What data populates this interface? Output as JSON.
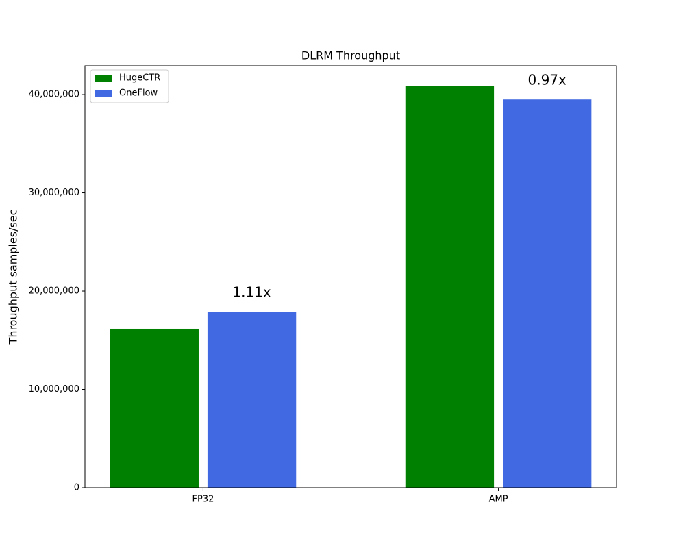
{
  "chart_data": {
    "type": "bar",
    "title": "DLRM Throughput",
    "y_label": "Throughput samples/sec",
    "categories": [
      "FP32",
      "AMP"
    ],
    "series": [
      {
        "name": "HugeCTR",
        "color": "#008000",
        "values": [
          16170000,
          40900000
        ]
      },
      {
        "name": "OneFlow",
        "color": "#4169e1",
        "values": [
          17900000,
          39500000
        ]
      }
    ],
    "annotations": [
      "1.11x",
      "0.97x"
    ],
    "ylim": [
      0,
      42930000
    ],
    "yticks": [
      0,
      {
        "value": 10000000,
        "label": "10,000,000"
      },
      {
        "value": 20000000,
        "label": "20,000,000"
      },
      {
        "value": 30000000,
        "label": "30,000,000"
      },
      {
        "value": 40000000,
        "label": "40,000,000"
      }
    ],
    "legend": "upper left",
    "grid": false
  }
}
